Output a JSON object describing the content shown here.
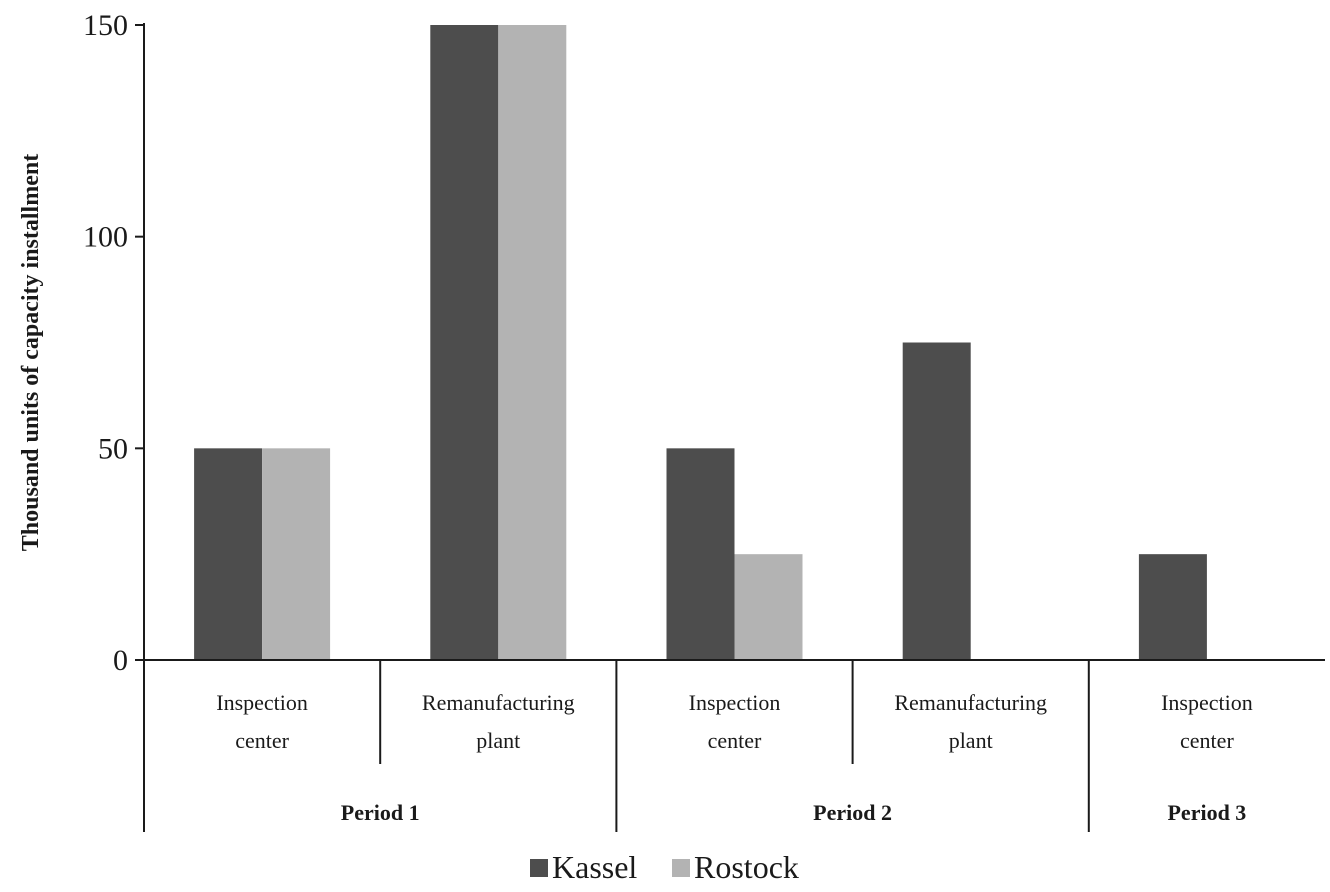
{
  "chart_data": {
    "type": "bar",
    "title": "",
    "ylabel": "Thousand units of capacity installment",
    "ylim": [
      0,
      150
    ],
    "yticks": [
      0,
      50,
      100,
      150
    ],
    "categories": [
      {
        "line1": "Inspection",
        "line2": "center",
        "period": "Period 1"
      },
      {
        "line1": "Remanufacturing",
        "line2": "plant",
        "period": "Period 1"
      },
      {
        "line1": "Inspection",
        "line2": "center",
        "period": "Period 2"
      },
      {
        "line1": "Remanufacturing",
        "line2": "plant",
        "period": "Period 2"
      },
      {
        "line1": "Inspection",
        "line2": "center",
        "period": "Period 3"
      }
    ],
    "periods": [
      {
        "label": "Period 1",
        "span": [
          0,
          2
        ]
      },
      {
        "label": "Period 2",
        "span": [
          2,
          4
        ]
      },
      {
        "label": "Period 3",
        "span": [
          4,
          5
        ]
      }
    ],
    "series": [
      {
        "name": "Kassel",
        "color": "#4d4d4d",
        "values": [
          50,
          150,
          50,
          75,
          25
        ]
      },
      {
        "name": "Rostock",
        "color": "#b3b3b3",
        "values": [
          50,
          150,
          25,
          0,
          0
        ]
      }
    ],
    "legend_position": "bottom-center",
    "grid": false
  }
}
